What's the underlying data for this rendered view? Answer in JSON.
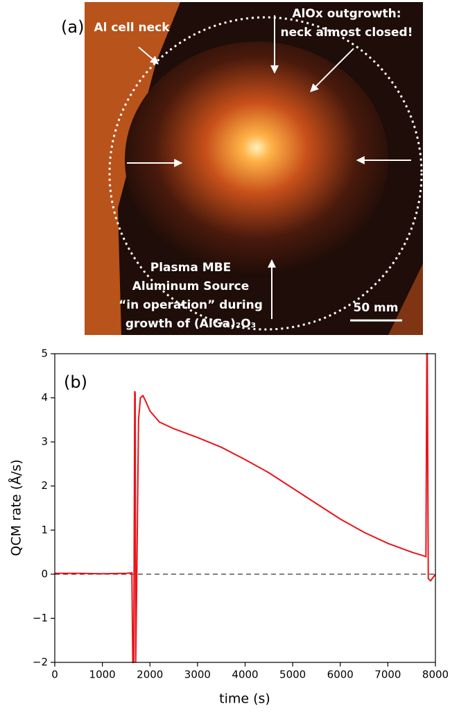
{
  "photo": {
    "label": "(a)",
    "annotations": [
      "Al cell neck",
      "AlOx outgrowth:",
      "neck almost closed!",
      "Plasma MBE",
      "Aluminum Source",
      "“in operation” during",
      "growth of (AlGa)₂O₃"
    ],
    "scale_bar": "50 mm"
  },
  "chart_data": {
    "type": "line",
    "panel_label": "(b)",
    "x_label": "time (s)",
    "y_label": "QCM rate (Å/s)",
    "color": "#e8141a",
    "x": [
      0,
      500,
      1000,
      1500,
      1620,
      1640,
      1660,
      1680,
      1690,
      1700,
      1720,
      1760,
      1800,
      1850,
      1900,
      2000,
      2200,
      2500,
      3000,
      3500,
      4000,
      4500,
      5000,
      5500,
      6000,
      6500,
      7000,
      7500,
      7800,
      7820,
      7830,
      7850,
      7900,
      8000
    ],
    "values": [
      0.02,
      0.02,
      0.01,
      0.02,
      0.03,
      -2,
      -2,
      4.15,
      4.1,
      -2,
      -0.5,
      3.5,
      4.0,
      4.05,
      3.95,
      3.7,
      3.45,
      3.3,
      3.1,
      2.88,
      2.6,
      2.3,
      1.95,
      1.6,
      1.25,
      0.95,
      0.7,
      0.5,
      0.4,
      5,
      5,
      -0.1,
      -0.15,
      0.0
    ],
    "xlim": [
      0,
      8000
    ],
    "ylim": [
      -2,
      5
    ],
    "xticks": [
      0,
      1000,
      2000,
      3000,
      4000,
      5000,
      6000,
      7000,
      8000
    ],
    "yticks": [
      {
        "value": -2,
        "label": "−2"
      },
      {
        "value": -1,
        "label": "−1"
      },
      0,
      1,
      2,
      3,
      4,
      5
    ],
    "hline": 0
  }
}
